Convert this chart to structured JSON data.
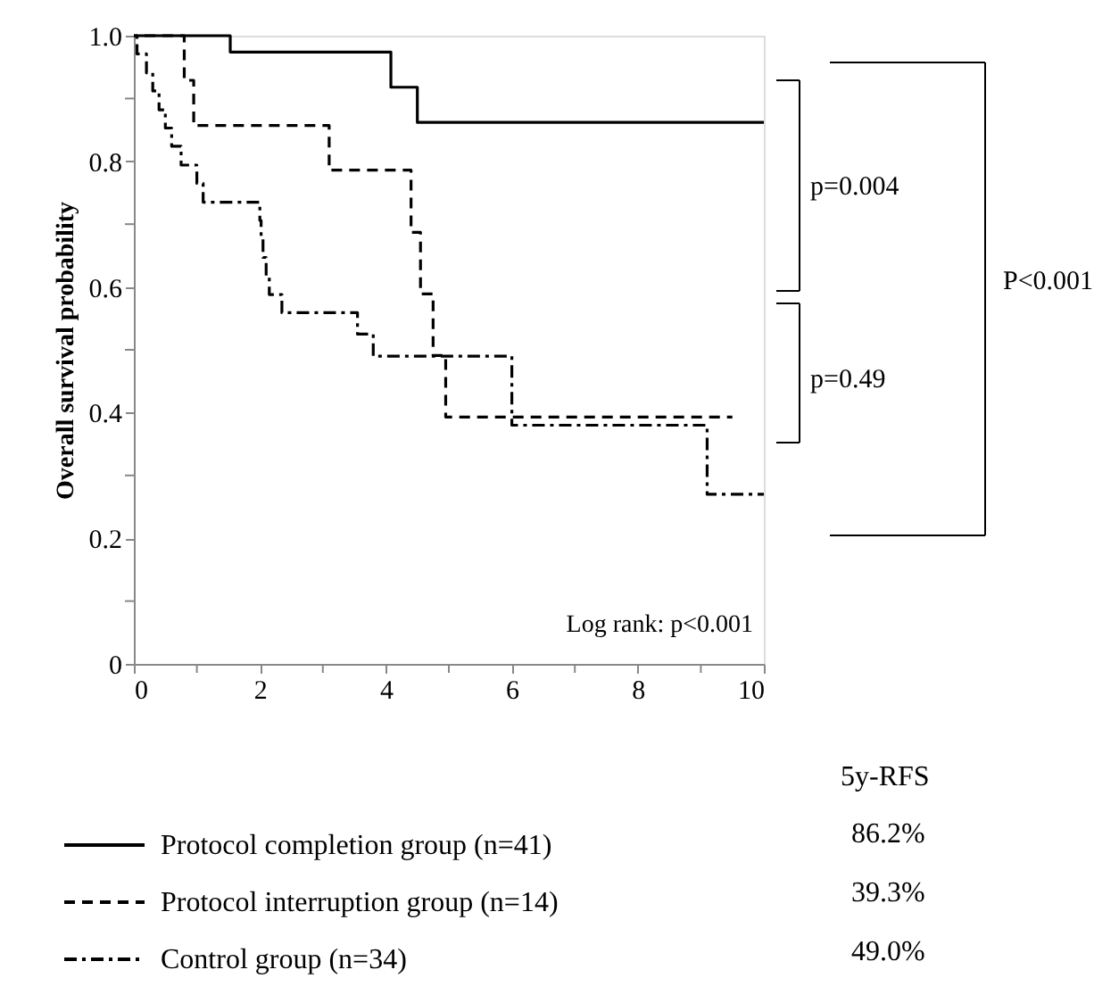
{
  "chart_data": {
    "type": "step",
    "ylabel": "Overall survival probability",
    "xlim": [
      0,
      10
    ],
    "xticks": [
      0,
      {
        "value": 1,
        "label": null
      },
      2,
      {
        "value": 3,
        "label": null
      },
      4,
      {
        "value": 5,
        "label": null
      },
      6,
      {
        "value": 7,
        "label": null
      },
      8,
      {
        "value": 9,
        "label": null
      },
      10
    ],
    "ylim": [
      0,
      1
    ],
    "yticks": [
      0,
      {
        "value": 0.1,
        "label": null
      },
      {
        "value": 0.2,
        "label": "0.2"
      },
      {
        "value": 0.3,
        "label": null
      },
      {
        "value": 0.4,
        "label": "0.4"
      },
      {
        "value": 0.5,
        "label": null
      },
      {
        "value": 0.6,
        "label": "0.6"
      },
      {
        "value": 0.7,
        "label": null
      },
      {
        "value": 0.8,
        "label": "0.8"
      },
      {
        "value": 0.9,
        "label": null
      },
      {
        "value": 1,
        "label": "1.0"
      }
    ],
    "grid": false,
    "legend": "bottom",
    "marker": "none",
    "legend_title": "5y-RFS",
    "series": [
      {
        "name": "Protocol completion group (n=41)",
        "color": "#000000",
        "line_style": "solid",
        "x": [
          0,
          1.53,
          4.08,
          4.5,
          10
        ],
        "values": [
          1,
          0.974,
          0.918,
          0.862,
          0.862
        ]
      },
      {
        "name": "Protocol interruption group (n=14)",
        "color": "#000000",
        "line_style": "dashed",
        "x": [
          0,
          0.8,
          0.95,
          3.1,
          4.4,
          4.55,
          4.75,
          4.95,
          9.5
        ],
        "values": [
          1,
          0.929,
          0.857,
          0.786,
          0.687,
          0.589,
          0.491,
          0.393,
          0.393
        ]
      },
      {
        "name": "Control group (n=34)",
        "color": "#000000",
        "line_style": "dashdot",
        "x": [
          0,
          0.05,
          0.2,
          0.3,
          0.4,
          0.5,
          0.6,
          0.75,
          1.0,
          1.1,
          2.0,
          2.02,
          2.05,
          2.1,
          2.15,
          2.35,
          3.55,
          3.8,
          6.0,
          9.1,
          10
        ],
        "values": [
          1,
          0.971,
          0.941,
          0.912,
          0.882,
          0.853,
          0.824,
          0.794,
          0.765,
          0.735,
          0.706,
          0.676,
          0.647,
          0.618,
          0.588,
          0.559,
          0.525,
          0.49,
          0.38,
          0.27,
          0.27
        ]
      }
    ],
    "annotations": [
      "p=0.004",
      "p=0.49",
      "P<0.001",
      "Log rank: p<0.001",
      "86.2%",
      "39.3%",
      "49.0%"
    ]
  }
}
